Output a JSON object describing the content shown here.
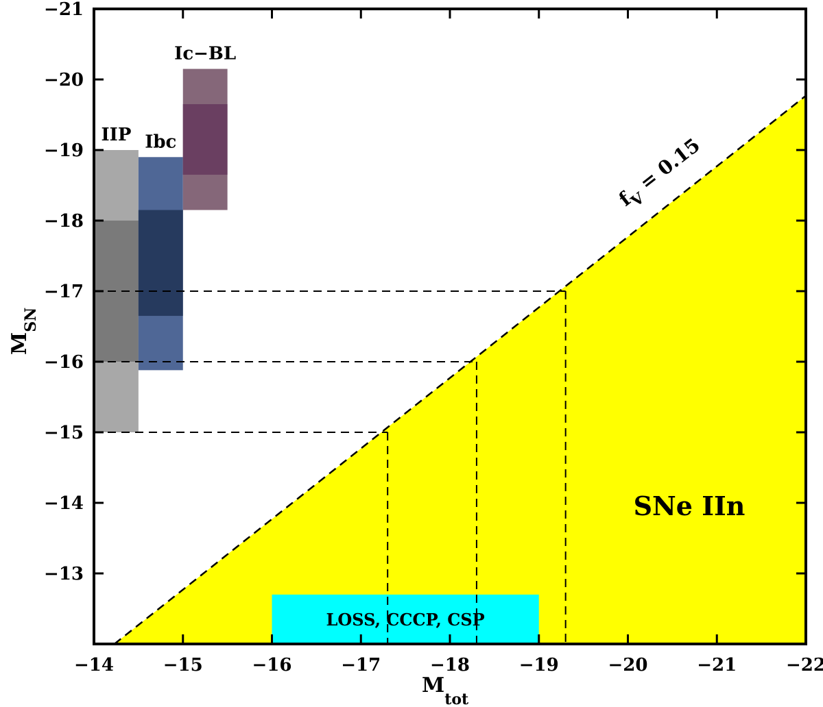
{
  "chart_data": {
    "type": "area",
    "xlabel": "M",
    "xlabel_sub": "tot",
    "ylabel": "M",
    "ylabel_sub": "SN",
    "xlim": [
      -14,
      -22
    ],
    "ylim": [
      -12,
      -21
    ],
    "x_ticks": [
      -14,
      -15,
      -16,
      -17,
      -18,
      -19,
      -20,
      -21,
      -22
    ],
    "y_ticks": [
      -13,
      -14,
      -15,
      -16,
      -17,
      -18,
      -19,
      -20,
      -21
    ],
    "x_tick_labels": [
      "−14",
      "−15",
      "−16",
      "−17",
      "−18",
      "−19",
      "−20",
      "−21",
      "−22"
    ],
    "y_tick_labels": [
      "−13",
      "−14",
      "−15",
      "−16",
      "−17",
      "−18",
      "−19",
      "−20",
      "−21"
    ],
    "grid": false,
    "threshold_line": {
      "label_main": "f",
      "label_sub": "V",
      "label_rest": " = 0.15",
      "points": [
        [
          -14.23,
          -12.0
        ],
        [
          -22.0,
          -19.77
        ]
      ],
      "style": "dashed"
    },
    "filled_region": {
      "label": "SNe IIn",
      "color": "#ffff00"
    },
    "guide_lines": [
      {
        "y": -15,
        "x_end": -17.3
      },
      {
        "y": -16,
        "x_end": -18.3
      },
      {
        "y": -17,
        "x_end": -19.3
      }
    ],
    "survey_box": {
      "label": "LOSS, CCCP, CSP",
      "x_range": [
        -16,
        -19
      ],
      "y_range": [
        -12,
        -12.7
      ],
      "color": "#00ffff"
    },
    "sn_types": [
      {
        "name": "IIP",
        "x_range": [
          -14,
          -14.5
        ],
        "outer": [
          -15,
          -19
        ],
        "inner": [
          -16,
          -18
        ],
        "outer_color": "#a8a8a8",
        "inner_color": "#7a7a7a"
      },
      {
        "name": "Ibc",
        "x_range": [
          -14.5,
          -15
        ],
        "outer": [
          -15.88,
          -18.9
        ],
        "inner": [
          -16.65,
          -18.15
        ],
        "outer_color": "#4f6796",
        "inner_color": "#263a5e"
      },
      {
        "name": "Ic−BL",
        "x_range": [
          -15,
          -15.5
        ],
        "outer": [
          -18.15,
          -20.15
        ],
        "inner": [
          -18.65,
          -19.65
        ],
        "outer_color": "#856779",
        "inner_color": "#6a3f61"
      }
    ]
  }
}
